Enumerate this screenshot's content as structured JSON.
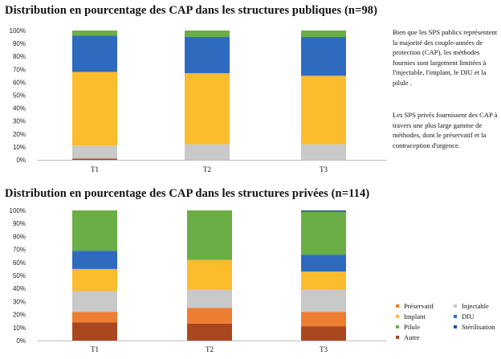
{
  "titles": {
    "public": "Distribution en pourcentage des CAP dans les structures publiques (n=98)",
    "private": "Distribution en pourcentage des CAP dans les structures privées (n=114)"
  },
  "notes": {
    "public": "Bien que  les SPS publics représentent la majorité des couple-années de protection (CAP), les méthodes fournies sont largement limitées à l'injectable, l'implant, le DIU et la pilule .",
    "private": "Les SPS privés   fournissent des CAP à travers une plus large gamme de méthodes, dont le préservatif et la contraception d'urgence."
  },
  "legend": [
    {
      "label": "Préservatif",
      "color": "#ed7d31"
    },
    {
      "label": "Injectable",
      "color": "#c9c9c9"
    },
    {
      "label": "Implant",
      "color": "#fbbc2d"
    },
    {
      "label": "DIU",
      "color": "#2e6bbf"
    },
    {
      "label": "Pilule",
      "color": "#6aae45"
    },
    {
      "label": "Stérilisation",
      "color": "#1f4e9c"
    },
    {
      "label": "Autre",
      "color": "#a9481f"
    }
  ],
  "chart_data": [
    {
      "type": "bar",
      "stacked": true,
      "title": "Distribution en pourcentage des CAP dans les structures publiques (n=98)",
      "categories": [
        "T1",
        "T2",
        "T3"
      ],
      "yticks": [
        "0%",
        "10%",
        "20%",
        "30%",
        "40%",
        "50%",
        "60%",
        "70%",
        "80%",
        "90%",
        "100%"
      ],
      "ylim": [
        0,
        100
      ],
      "series": [
        {
          "name": "Autre",
          "color": "#a9481f",
          "values": [
            1,
            0,
            0
          ]
        },
        {
          "name": "Préservatif",
          "color": "#ed7d31",
          "values": [
            0,
            0,
            0
          ]
        },
        {
          "name": "Injectable",
          "color": "#c9c9c9",
          "values": [
            10,
            12,
            12
          ]
        },
        {
          "name": "Implant",
          "color": "#fbbc2d",
          "values": [
            57,
            55,
            53
          ]
        },
        {
          "name": "DIU",
          "color": "#2e6bbf",
          "values": [
            28,
            28,
            30
          ]
        },
        {
          "name": "Pilule",
          "color": "#6aae45",
          "values": [
            4,
            5,
            5
          ]
        },
        {
          "name": "Stérilisation",
          "color": "#1f4e9c",
          "values": [
            0,
            0,
            0
          ]
        }
      ]
    },
    {
      "type": "bar",
      "stacked": true,
      "title": "Distribution en pourcentage des CAP dans les structures privées (n=114)",
      "categories": [
        "T1",
        "T2",
        "T3"
      ],
      "yticks": [
        "0%",
        "10%",
        "20%",
        "30%",
        "40%",
        "50%",
        "60%",
        "70%",
        "80%",
        "90%",
        "100%"
      ],
      "ylim": [
        0,
        100
      ],
      "series": [
        {
          "name": "Autre",
          "color": "#a9481f",
          "values": [
            14,
            13,
            11
          ]
        },
        {
          "name": "Préservatif",
          "color": "#ed7d31",
          "values": [
            8,
            12,
            11
          ]
        },
        {
          "name": "Injectable",
          "color": "#c9c9c9",
          "values": [
            16,
            14,
            17
          ]
        },
        {
          "name": "Implant",
          "color": "#fbbc2d",
          "values": [
            17,
            23,
            14
          ]
        },
        {
          "name": "DIU",
          "color": "#2e6bbf",
          "values": [
            14,
            0,
            13
          ]
        },
        {
          "name": "Pilule",
          "color": "#6aae45",
          "values": [
            31,
            38,
            33
          ]
        },
        {
          "name": "Stérilisation",
          "color": "#1f4e9c",
          "values": [
            0,
            0,
            1
          ]
        }
      ]
    }
  ]
}
